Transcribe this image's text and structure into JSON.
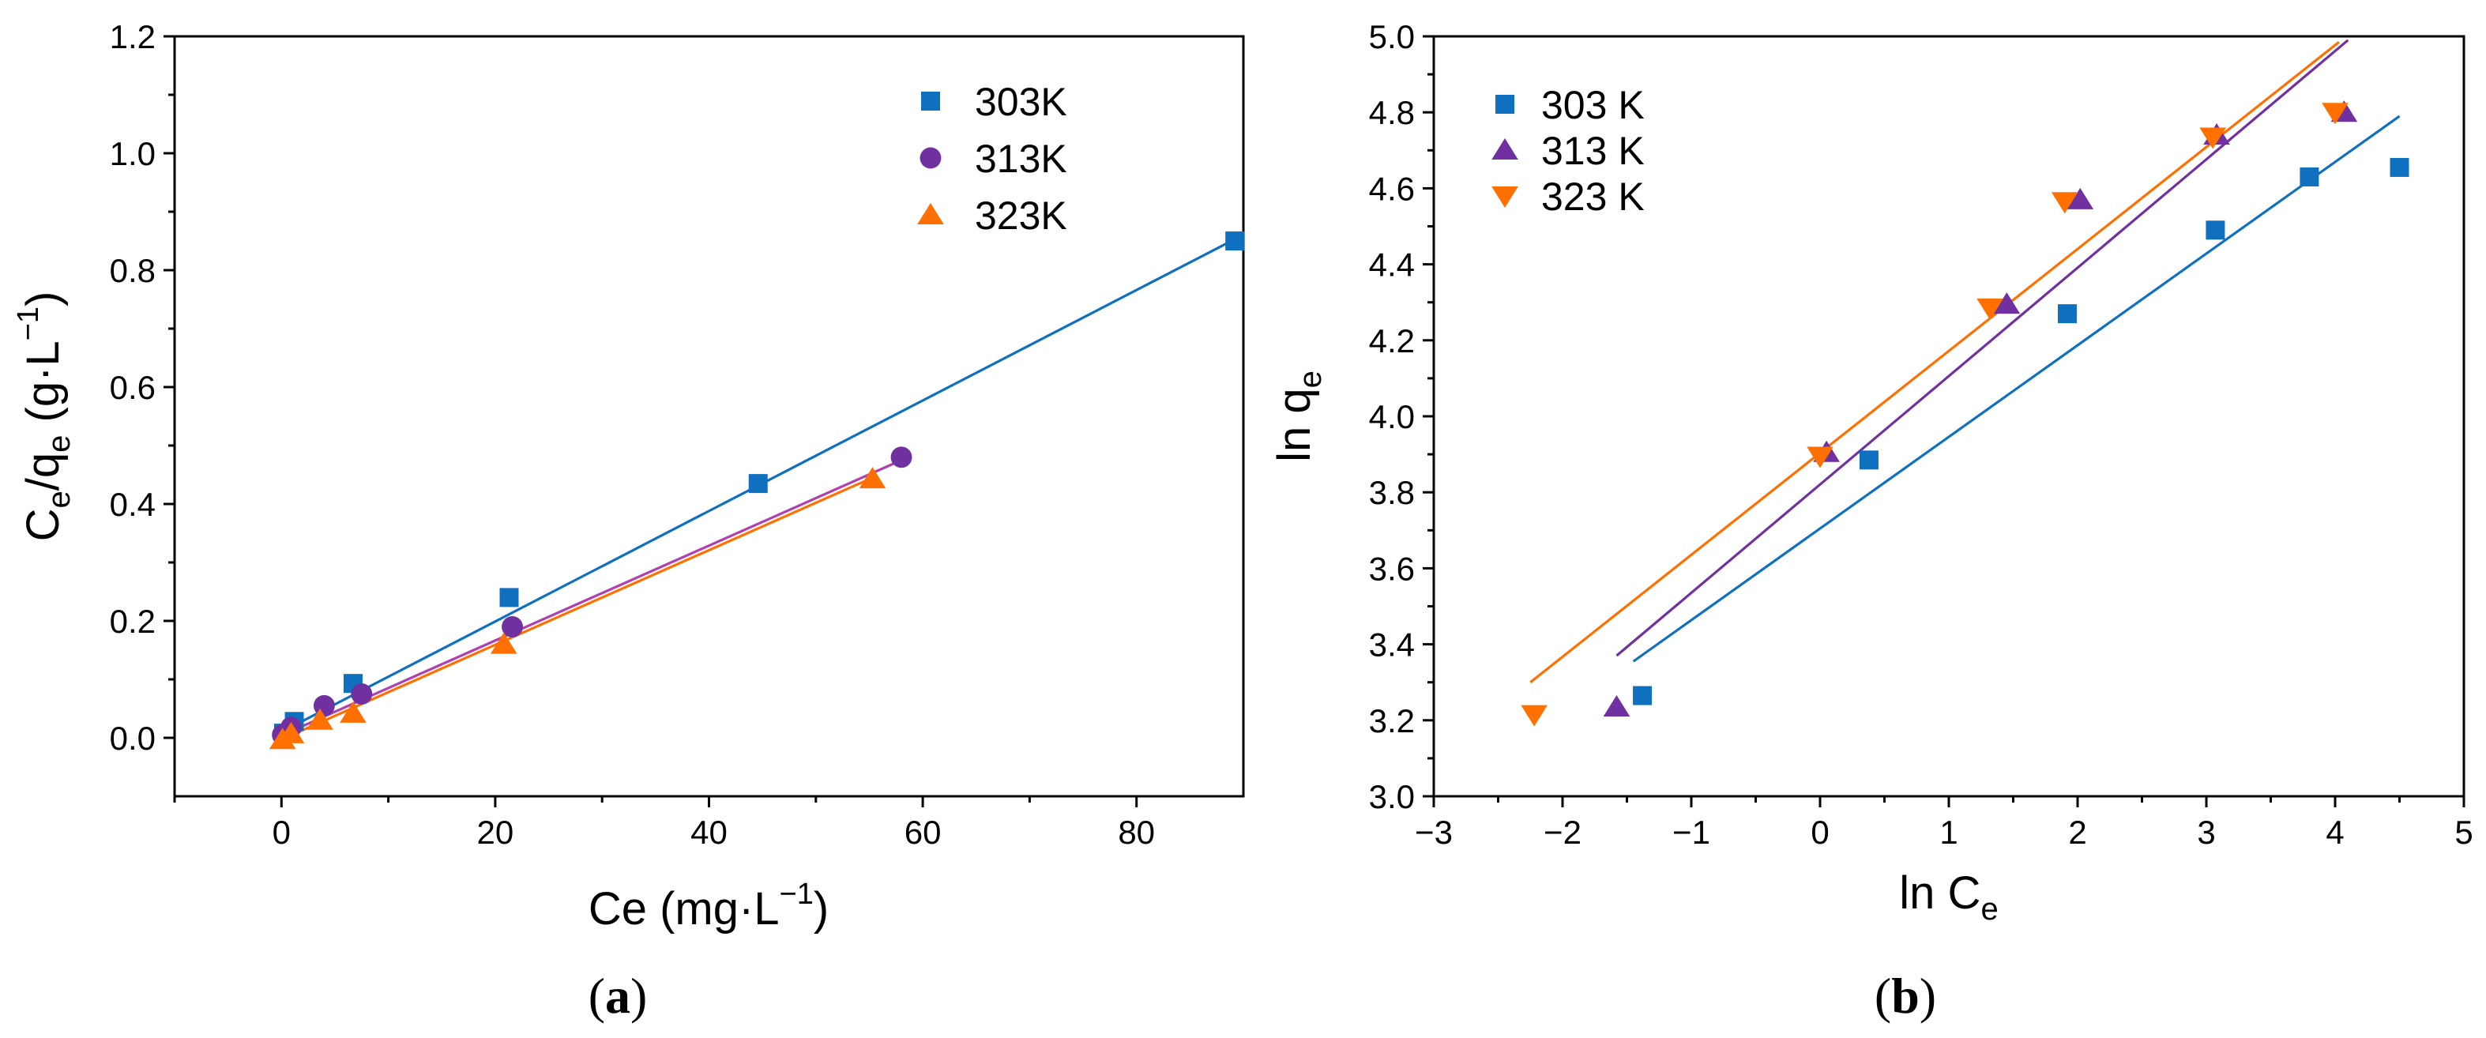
{
  "colors": {
    "s303": "#1070c0",
    "s313": "#7030a0",
    "s323": "#ff7000",
    "line313": "#b040b0"
  },
  "chart_data": [
    {
      "panel": "a",
      "caption": "a",
      "type": "scatter",
      "title": "",
      "xlabel": {
        "main": "Ce (mg·L",
        "sup": "−1",
        "close": ")"
      },
      "ylabel": {
        "c": "C",
        "e": "e",
        "slash": "/q",
        "e2": "e",
        "rest": " (g·L",
        "sup": "−1",
        "close": ")"
      },
      "xlim": [
        -10,
        90
      ],
      "ylim": [
        -0.1,
        1.2
      ],
      "xticks": [
        "0",
        "20",
        "40",
        "60",
        "80"
      ],
      "yticks": [
        "0.0",
        "0.2",
        "0.4",
        "0.6",
        "0.8",
        "1.0",
        "1.2"
      ],
      "legend": {
        "position": "top-right",
        "entries": [
          "303K",
          "313K",
          "323K"
        ]
      },
      "series": [
        {
          "name": "303K",
          "marker": "square",
          "color_key": "s303",
          "x": [
            0.2,
            1.2,
            6.7,
            21.3,
            44.6,
            89.2
          ],
          "y": [
            0.008,
            0.028,
            0.093,
            0.24,
            0.435,
            0.85
          ],
          "fit": [
            [
              0,
              0.01
            ],
            [
              89.2,
              0.853
            ]
          ]
        },
        {
          "name": "313K",
          "marker": "circle",
          "color_key": "s313",
          "line_key": "line313",
          "x": [
            0.1,
            0.9,
            4,
            7.5,
            21.6,
            58
          ],
          "y": [
            0.005,
            0.018,
            0.055,
            0.075,
            0.19,
            0.48
          ],
          "fit": [
            [
              0,
              0.004
            ],
            [
              58,
              0.475
            ]
          ]
        },
        {
          "name": "323K",
          "marker": "triangle-up",
          "color_key": "s323",
          "x": [
            0.1,
            0.9,
            3.6,
            6.7,
            20.8,
            55.3
          ],
          "y": [
            -0.003,
            0.007,
            0.03,
            0.042,
            0.16,
            0.443
          ],
          "fit": [
            [
              0,
              -0.003
            ],
            [
              55.3,
              0.445
            ]
          ]
        }
      ]
    },
    {
      "panel": "b",
      "caption": "b",
      "type": "scatter",
      "title": "",
      "xlabel": {
        "main": "ln C",
        "sub": "e"
      },
      "ylabel": {
        "main": "ln q",
        "sub": "e"
      },
      "xlim": [
        -3,
        5
      ],
      "ylim": [
        3.0,
        5.0
      ],
      "xticks": [
        "−3",
        "−2",
        "−1",
        "0",
        "1",
        "2",
        "3",
        "4",
        "5"
      ],
      "yticks": [
        "3.0",
        "3.2",
        "3.4",
        "3.6",
        "3.8",
        "4.0",
        "4.2",
        "4.4",
        "4.6",
        "4.8",
        "5.0"
      ],
      "legend": {
        "position": "top-left",
        "entries": [
          "303 K",
          "313 K",
          "323 K"
        ]
      },
      "series": [
        {
          "name": "303 K",
          "marker": "square",
          "color_key": "s303",
          "x": [
            -1.38,
            0.38,
            1.92,
            3.07,
            3.8,
            4.5
          ],
          "y": [
            3.265,
            3.885,
            4.27,
            4.49,
            4.63,
            4.655
          ],
          "fit": [
            [
              -1.45,
              3.355
            ],
            [
              4.5,
              4.79
            ]
          ]
        },
        {
          "name": "313 K",
          "marker": "triangle-up",
          "color_key": "s313",
          "x": [
            -1.58,
            0.05,
            1.45,
            2.02,
            3.08,
            4.07
          ],
          "y": [
            3.235,
            3.905,
            4.295,
            4.57,
            4.74,
            4.8
          ],
          "fit": [
            [
              -1.58,
              3.37
            ],
            [
              4.1,
              4.99
            ]
          ]
        },
        {
          "name": "323 K",
          "marker": "triangle-down",
          "color_key": "s323",
          "x": [
            -2.22,
            0.0,
            1.32,
            1.9,
            3.05,
            4.0
          ],
          "y": [
            3.215,
            3.895,
            4.285,
            4.565,
            4.735,
            4.8
          ],
          "fit": [
            [
              -2.25,
              3.3
            ],
            [
              4.03,
              4.985
            ]
          ]
        }
      ]
    }
  ]
}
